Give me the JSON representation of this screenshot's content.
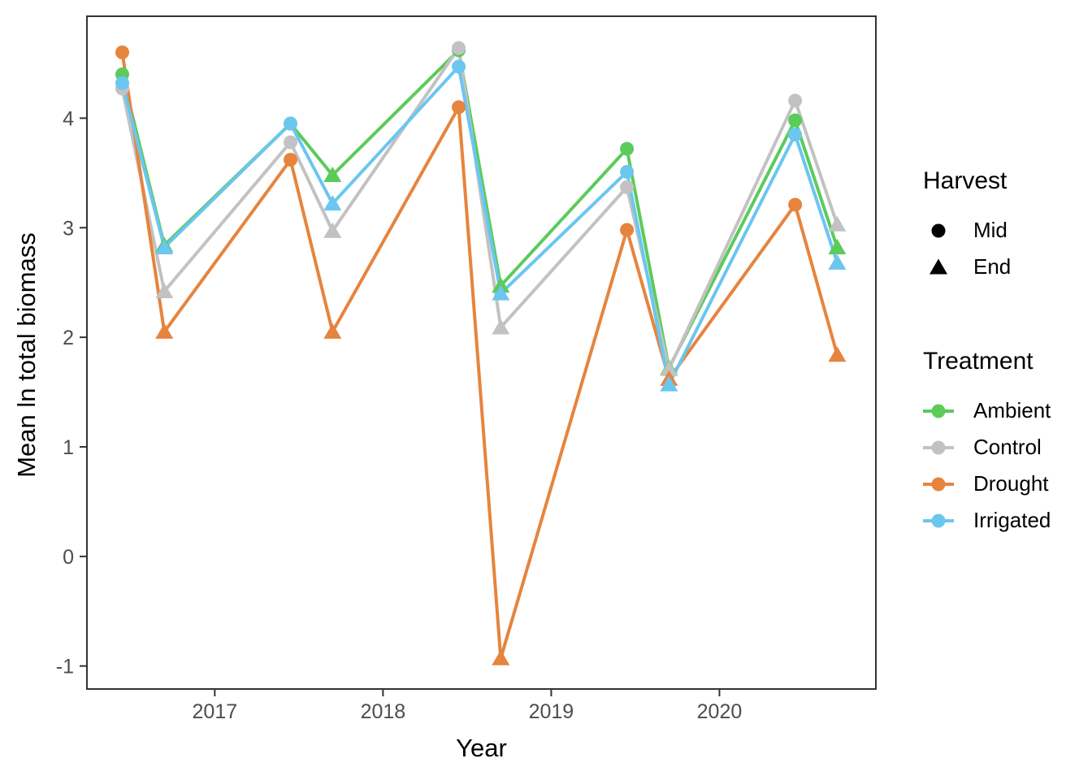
{
  "figure": {
    "background": "#FFFFFF",
    "axis_color": "#333333",
    "tick_label_color": "#4D4D4D",
    "title_color": "#000000"
  },
  "chart_data": {
    "type": "line",
    "title": "",
    "xlabel": "Year",
    "ylabel": "Mean ln total biomass",
    "grid": false,
    "legend_position": "right",
    "xlim": [
      2016.24,
      2020.93
    ],
    "ylim": [
      -1.21,
      4.93
    ],
    "x_ticks": [
      {
        "value": 2017,
        "label": "2017"
      },
      {
        "value": 2018,
        "label": "2018"
      },
      {
        "value": 2019,
        "label": "2019"
      },
      {
        "value": 2020,
        "label": "2020"
      }
    ],
    "y_ticks": [
      {
        "value": -1,
        "label": "-1"
      },
      {
        "value": 0,
        "label": "0"
      },
      {
        "value": 1,
        "label": "1"
      },
      {
        "value": 2,
        "label": "2"
      },
      {
        "value": 3,
        "label": "3"
      },
      {
        "value": 4,
        "label": "4"
      }
    ],
    "x": [
      2016.45,
      2016.7,
      2017.45,
      2017.7,
      2018.45,
      2018.7,
      2019.45,
      2019.7,
      2020.45,
      2020.7
    ],
    "point_harvest": [
      "Mid",
      "End",
      "Mid",
      "End",
      "Mid",
      "End",
      "Mid",
      "End",
      "Mid",
      "End"
    ],
    "series": [
      {
        "name": "Ambient",
        "color": "#5BCB5B",
        "values": [
          4.4,
          2.84,
          3.95,
          3.48,
          4.62,
          2.47,
          3.72,
          1.72,
          3.98,
          2.82
        ]
      },
      {
        "name": "Control",
        "color": "#C2C2C2",
        "values": [
          4.27,
          2.42,
          3.78,
          2.97,
          4.64,
          2.09,
          3.37,
          1.71,
          4.16,
          3.03
        ]
      },
      {
        "name": "Drought",
        "color": "#E6843E",
        "values": [
          4.6,
          2.05,
          3.62,
          2.05,
          4.1,
          -0.93,
          2.98,
          1.62,
          3.21,
          1.84
        ]
      },
      {
        "name": "Irrigated",
        "color": "#6BC6F0",
        "values": [
          4.32,
          2.82,
          3.95,
          3.22,
          4.47,
          2.4,
          3.51,
          1.57,
          3.85,
          2.68
        ]
      }
    ]
  },
  "legend": {
    "harvest": {
      "title": "Harvest",
      "color": "#000000",
      "items": [
        {
          "label": "Mid",
          "shape": "circle"
        },
        {
          "label": "End",
          "shape": "triangle"
        }
      ]
    },
    "treatment": {
      "title": "Treatment",
      "items": [
        {
          "label": "Ambient",
          "color": "#5BCB5B"
        },
        {
          "label": "Control",
          "color": "#C2C2C2"
        },
        {
          "label": "Drought",
          "color": "#E6843E"
        },
        {
          "label": "Irrigated",
          "color": "#6BC6F0"
        }
      ]
    }
  }
}
